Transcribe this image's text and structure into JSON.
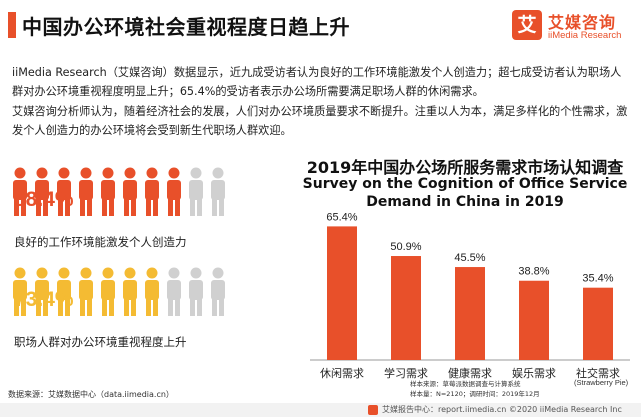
{
  "header": {
    "title": "中国办公环境社会重视程度日趋上升",
    "logo_mark": "艾",
    "logo_cn": "艾媒咨询",
    "logo_en": "iiMedia Research"
  },
  "paragraphs": [
    "iiMedia Research（艾媒咨询）数据显示，近九成受访者认为良好的工作环境能激发个人创造力；超七成受访者认为职场人群对办公环境重视程度明显上升；65.4%的受访者表示办公场所需要满足职场人群的休闲需求。",
    "艾媒咨询分析师认为，随着经济社会的发展，人们对办公环境质量要求不断提升。注重以人为本，满足多样化的个性需求，激发个人创造力的办公环境将会受到新生代职场人群欢迎。"
  ],
  "stats": [
    {
      "percent": "88.4%",
      "label": "良好的工作环境能激发个人创造力",
      "fraction": 0.884,
      "color": "#e8502a"
    },
    {
      "percent": "73.4%",
      "label": "职场人群对办公环境重视程度上升",
      "fraction": 0.734,
      "color": "#f4bb33"
    }
  ],
  "colors": {
    "accent": "#e8502a",
    "secondary": "#f4bb33",
    "inactive": "#d0d0d0"
  },
  "chart_data": {
    "type": "bar",
    "title": "2019年中国办公场所服务需求市场认知调查",
    "subtitle_line1": "Survey on the Cognition of Office Service",
    "subtitle_line2": "Demand in China in 2019",
    "categories": [
      "休闲需求",
      "学习需求",
      "健康需求",
      "娱乐需求",
      "社交需求"
    ],
    "values": [
      65.4,
      50.9,
      45.5,
      38.8,
      35.4
    ],
    "value_labels": [
      "65.4%",
      "50.9%",
      "45.5%",
      "38.8%",
      "35.4%"
    ],
    "ylim": [
      0,
      70
    ],
    "grid": false,
    "bar_color": "#e8502a"
  },
  "notes": {
    "line1": "样本来源：草莓派数据调查与计算系统",
    "line2": "样本量：N=2120；调研时间：2019年12月",
    "credit": "(Strawberry Pie)"
  },
  "source": "数据来源：艾媒数据中心（data.iimedia.cn）",
  "footer": "艾媒报告中心：report.iimedia.cn ©2020  iiMedia Research  Inc"
}
